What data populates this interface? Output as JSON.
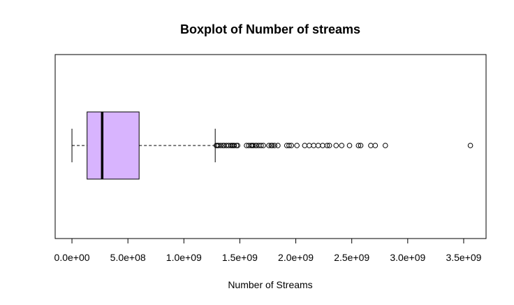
{
  "chart_data": {
    "type": "boxplot",
    "orientation": "horizontal",
    "title": "Boxplot of Number of streams",
    "xlabel": "Number of Streams",
    "ylabel": "",
    "xlim": [
      -150000000,
      3700000000
    ],
    "ticks": [
      {
        "value": 0,
        "label": "0.0e+00"
      },
      {
        "value": 500000000,
        "label": "5.0e+08"
      },
      {
        "value": 1000000000,
        "label": "1.0e+09"
      },
      {
        "value": 1500000000,
        "label": "1.5e+09"
      },
      {
        "value": 2000000000,
        "label": "2.0e+09"
      },
      {
        "value": 2500000000,
        "label": "2.5e+09"
      },
      {
        "value": 3000000000,
        "label": "3.0e+09"
      },
      {
        "value": 3500000000,
        "label": "3.5e+09"
      }
    ],
    "box": {
      "whisker_low": 0,
      "q1": 135000000,
      "median": 270000000,
      "q3": 600000000,
      "whisker_high": 1280000000,
      "fill": "#d8b4fe",
      "border": "#000000"
    },
    "outliers": [
      1290000000,
      1300000000,
      1310000000,
      1330000000,
      1350000000,
      1360000000,
      1380000000,
      1400000000,
      1420000000,
      1430000000,
      1440000000,
      1450000000,
      1470000000,
      1480000000,
      1560000000,
      1580000000,
      1600000000,
      1610000000,
      1620000000,
      1640000000,
      1650000000,
      1670000000,
      1690000000,
      1710000000,
      1760000000,
      1780000000,
      1790000000,
      1810000000,
      1840000000,
      1920000000,
      1940000000,
      1960000000,
      2010000000,
      2080000000,
      2120000000,
      2160000000,
      2200000000,
      2240000000,
      2280000000,
      2300000000,
      2360000000,
      2410000000,
      2480000000,
      2560000000,
      2580000000,
      2670000000,
      2710000000,
      2800000000,
      3560000000
    ],
    "grid": false,
    "legend": "none"
  }
}
